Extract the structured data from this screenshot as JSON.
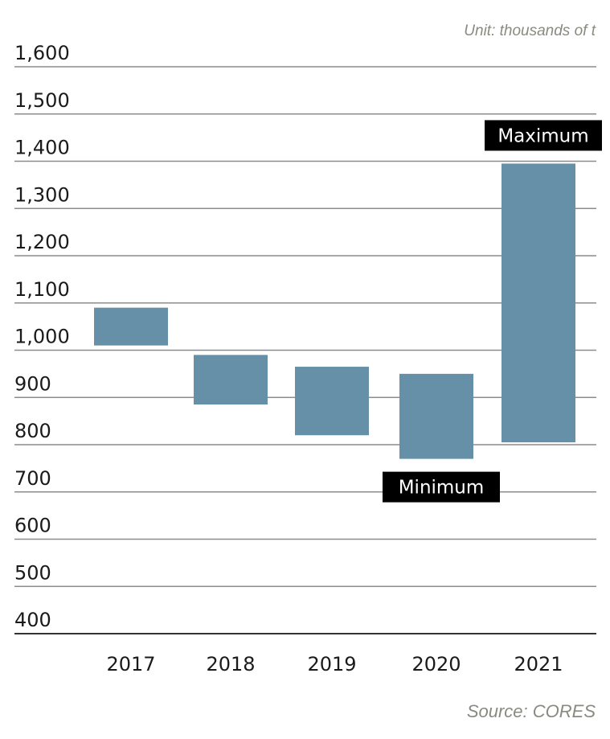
{
  "unit_note": "Unit: thousands of t",
  "source_note": "Source: CORES",
  "colors": {
    "bar": "#6590a8",
    "gridline": "#8c8c8c",
    "baseline": "#333333",
    "callout_bg": "#000000",
    "callout_text": "#ffffff",
    "note_text": "#8a8a80"
  },
  "chart_data": {
    "type": "bar",
    "subtype": "floating-range",
    "categories": [
      "2017",
      "2018",
      "2019",
      "2020",
      "2021"
    ],
    "ranges": [
      {
        "low": 1010,
        "high": 1090
      },
      {
        "low": 885,
        "high": 990
      },
      {
        "low": 820,
        "high": 965
      },
      {
        "low": 770,
        "high": 950
      },
      {
        "low": 805,
        "high": 1395
      }
    ],
    "ylim": [
      400,
      1600
    ],
    "yticks": [
      400,
      500,
      600,
      700,
      800,
      900,
      1000,
      1100,
      1200,
      1300,
      1400,
      1500,
      1600
    ],
    "ytick_labels": [
      "400",
      "500",
      "600",
      "700",
      "800",
      "900",
      "1,000",
      "1,100",
      "1,200",
      "1,300",
      "1,400",
      "1,500",
      "1,600"
    ],
    "grid": true,
    "annotations": [
      {
        "text": "Maximum",
        "category": "2021",
        "anchor": "high"
      },
      {
        "text": "Minimum",
        "category": "2020",
        "anchor": "low"
      }
    ]
  }
}
